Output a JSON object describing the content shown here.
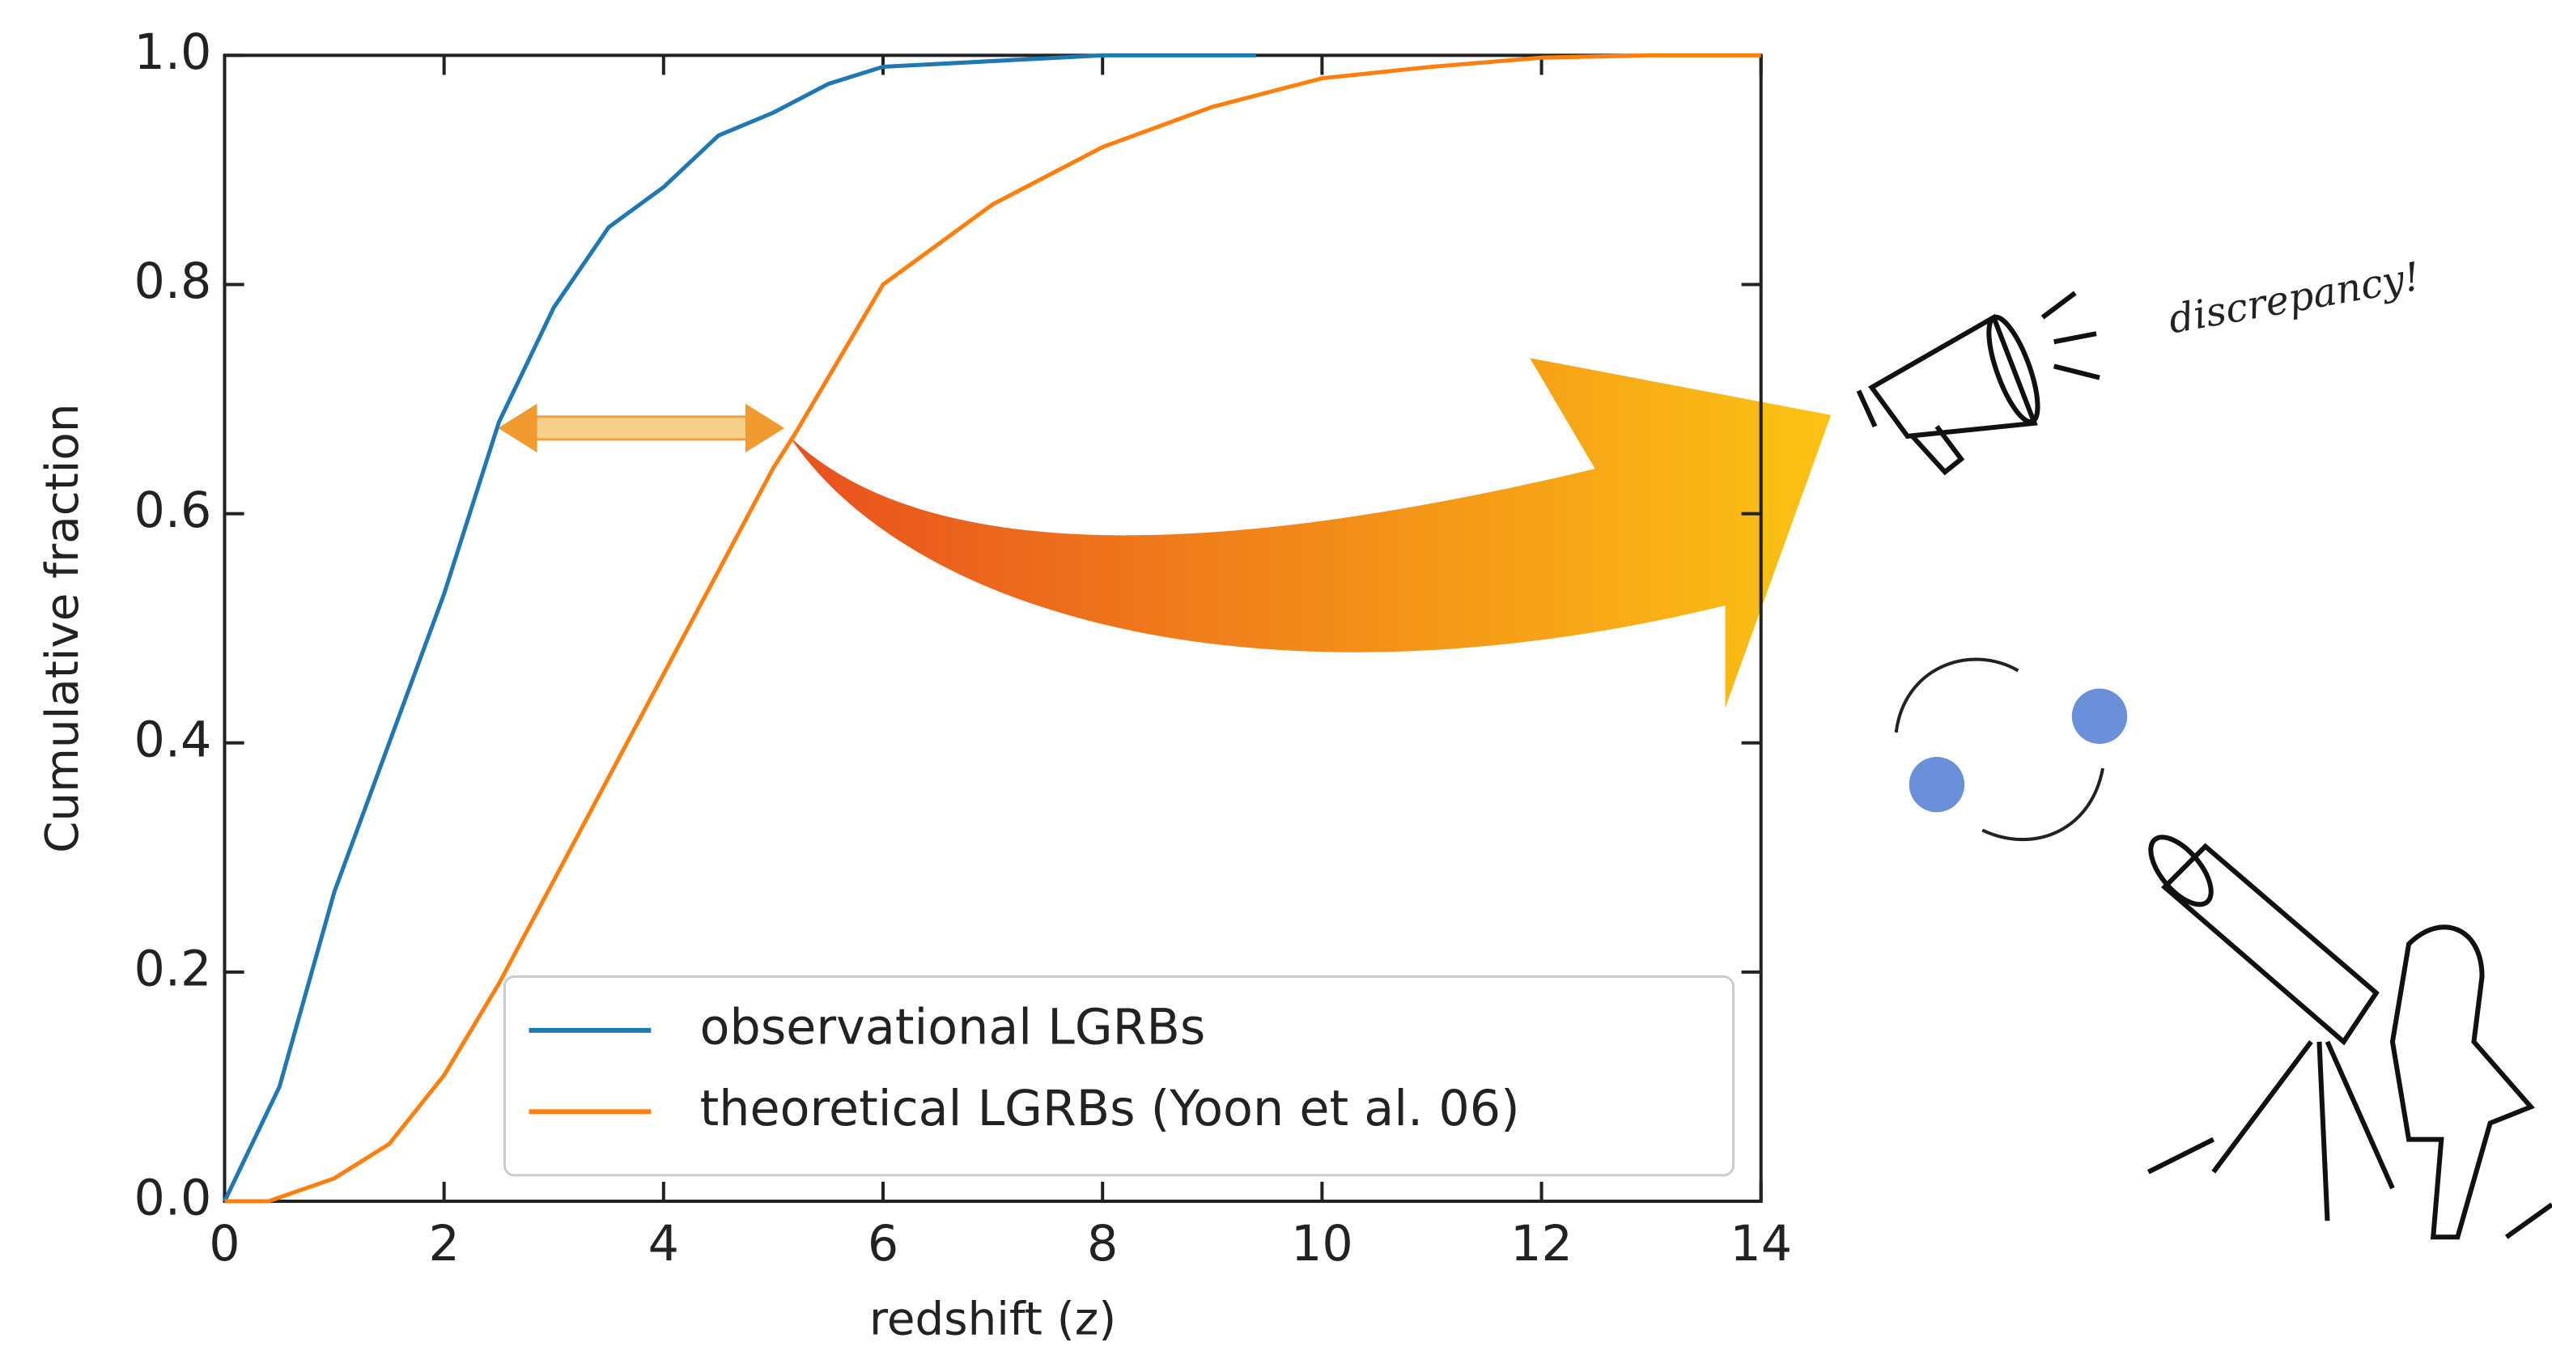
{
  "chart_data": {
    "type": "line",
    "xlabel": "redshift (z)",
    "ylabel": "Cumulative fraction",
    "annotation": "discrepancy!",
    "xlim": [
      0,
      14
    ],
    "ylim": [
      0,
      1
    ],
    "xticks": [
      0,
      2,
      4,
      6,
      8,
      10,
      12,
      14
    ],
    "yticks": [
      {
        "value": 0,
        "label": "0.0"
      },
      0.2,
      0.4,
      0.6,
      0.8,
      {
        "value": 1,
        "label": "1.0"
      }
    ],
    "legend": "lower right",
    "series": [
      {
        "name": "observational LGRBs",
        "color": "#1f77b4",
        "x": [
          0,
          0.5,
          1,
          1.5,
          2,
          2.5,
          3,
          3.5,
          4,
          4.5,
          5,
          5.5,
          6,
          7,
          8,
          9.4
        ],
        "values": [
          0,
          0.1,
          0.27,
          0.4,
          0.53,
          0.68,
          0.78,
          0.85,
          0.885,
          0.93,
          0.95,
          0.975,
          0.99,
          0.995,
          1.0,
          1.0
        ]
      },
      {
        "name": "theoretical LGRBs (Yoon et al. 06)",
        "color": "#ff7f0e",
        "x": [
          0,
          0.4,
          1,
          1.5,
          2,
          2.5,
          3,
          3.5,
          4,
          4.5,
          5,
          5.2,
          6,
          7,
          8,
          9,
          10,
          11,
          12,
          13,
          14
        ],
        "values": [
          0,
          0,
          0.02,
          0.05,
          0.11,
          0.19,
          0.28,
          0.37,
          0.46,
          0.55,
          0.64,
          0.67,
          0.8,
          0.87,
          0.92,
          0.955,
          0.98,
          0.99,
          0.998,
          1.0,
          1.0
        ]
      }
    ]
  }
}
